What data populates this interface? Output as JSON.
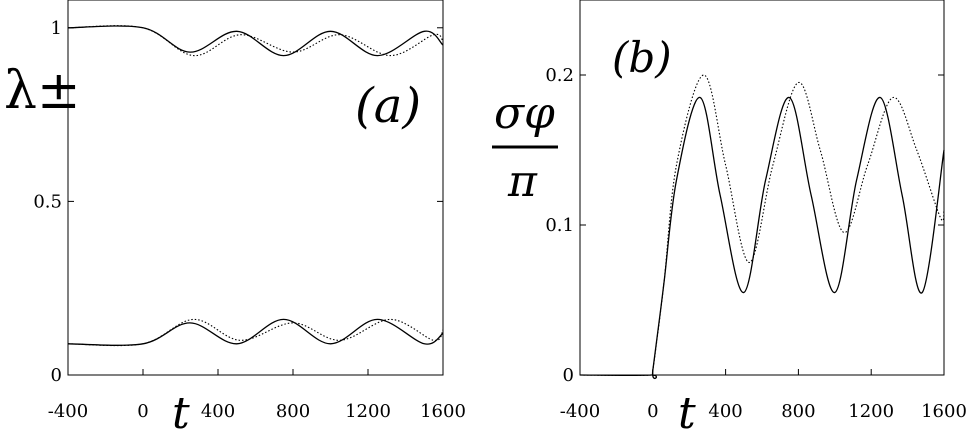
{
  "chart_data": [
    {
      "type": "line",
      "panel_label": "(a)",
      "ylabel": "λ±",
      "xlabel": "t",
      "xlim": [
        -400,
        1600
      ],
      "ylim": [
        0,
        1.08
      ],
      "xticks": [
        "-400",
        "0",
        "400",
        "800",
        "1200",
        "1600"
      ],
      "yticks": [
        "0",
        "0.5",
        "1"
      ],
      "series": [
        {
          "style": "solid",
          "x": [
            -400,
            0,
            250,
            500,
            750,
            1000,
            1250,
            1500,
            1600
          ],
          "y": [
            1.0,
            1.0,
            0.93,
            0.99,
            0.92,
            0.99,
            0.92,
            0.99,
            0.95
          ]
        },
        {
          "style": "dotted",
          "x": [
            -400,
            0,
            270,
            520,
            800,
            1050,
            1320,
            1550,
            1600
          ],
          "y": [
            1.0,
            1.0,
            0.92,
            0.98,
            0.93,
            0.98,
            0.92,
            0.98,
            0.96
          ]
        },
        {
          "style": "solid",
          "x": [
            -400,
            0,
            250,
            500,
            750,
            1000,
            1250,
            1500,
            1600
          ],
          "y": [
            0.09,
            0.09,
            0.15,
            0.09,
            0.16,
            0.09,
            0.16,
            0.09,
            0.12
          ]
        },
        {
          "style": "dotted",
          "x": [
            -400,
            0,
            270,
            520,
            800,
            1050,
            1320,
            1550,
            1600
          ],
          "y": [
            0.09,
            0.09,
            0.16,
            0.1,
            0.15,
            0.1,
            0.16,
            0.1,
            0.13
          ]
        }
      ]
    },
    {
      "type": "line",
      "panel_label": "(b)",
      "ylabel_numerator": "σφ",
      "ylabel_denominator": "π",
      "xlabel": "t",
      "xlim": [
        -400,
        1600
      ],
      "ylim": [
        0,
        0.25
      ],
      "xticks": [
        "-400",
        "0",
        "400",
        "800",
        "1200",
        "1600"
      ],
      "yticks": [
        "0",
        "0.1",
        "0.2"
      ],
      "series": [
        {
          "style": "solid",
          "x": [
            -400,
            -10,
            0,
            60,
            130,
            260,
            370,
            500,
            620,
            750,
            870,
            1000,
            1120,
            1250,
            1370,
            1480,
            1600
          ],
          "y": [
            0.0,
            0.0,
            0.003,
            0.06,
            0.13,
            0.185,
            0.12,
            0.055,
            0.13,
            0.185,
            0.12,
            0.055,
            0.13,
            0.185,
            0.12,
            0.055,
            0.15
          ]
        },
        {
          "style": "dotted",
          "x": [
            -400,
            -10,
            0,
            60,
            130,
            280,
            400,
            530,
            660,
            800,
            920,
            1050,
            1180,
            1320,
            1450,
            1580,
            1600
          ],
          "y": [
            0.0,
            0.0,
            0.003,
            0.06,
            0.14,
            0.2,
            0.14,
            0.075,
            0.14,
            0.195,
            0.15,
            0.095,
            0.14,
            0.185,
            0.15,
            0.105,
            0.11
          ]
        }
      ]
    }
  ]
}
